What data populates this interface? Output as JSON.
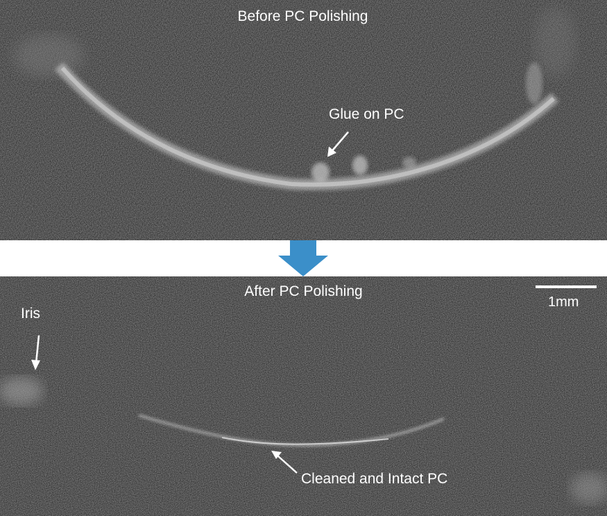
{
  "top_panel": {
    "title": "Before PC Polishing",
    "annotation": "Glue on PC"
  },
  "bottom_panel": {
    "title": "After PC Polishing",
    "iris_annotation": "Iris",
    "pc_annotation": "Cleaned and Intact PC",
    "scale_bar_label": "1mm"
  },
  "colors": {
    "arrow_blue": "#3b8fc9",
    "annotation_white": "#ffffff",
    "background_gray": "#3a3a3a"
  },
  "icons": [
    "down-arrow-icon",
    "annotation-arrow-icon"
  ]
}
